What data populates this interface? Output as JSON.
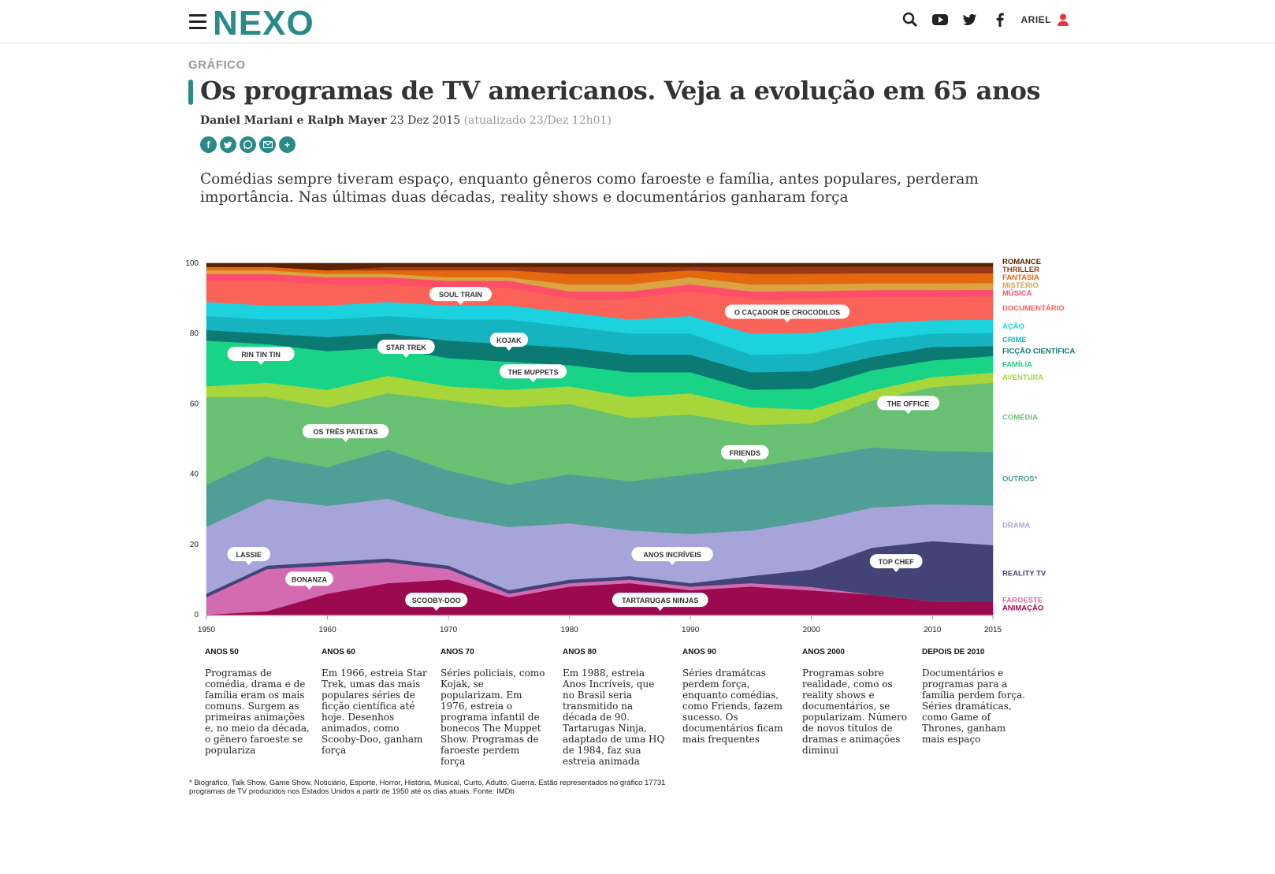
{
  "header": {
    "logo_text": "NEXO",
    "user_label": "ARIEL",
    "icons": [
      "menu-icon",
      "search-icon",
      "youtube-icon",
      "twitter-icon",
      "facebook-icon",
      "user-icon"
    ]
  },
  "article": {
    "kicker": "GRÁFICO",
    "title": "Os programas de TV americanos. Veja a evolução em 65 anos",
    "authors": "Daniel Mariani e Ralph Mayer",
    "date": "23 Dez 2015",
    "updated": "(atualizado 23/Dez 12h01)",
    "share_icons": [
      "facebook-icon",
      "twitter-icon",
      "whatsapp-icon",
      "email-icon",
      "plus-icon"
    ],
    "lead": "Comédias sempre tiveram espaço, enquanto gêneros como faroeste e família, antes populares, perderam importância. Nas últimas duas décadas, reality shows e documentários ganharam força"
  },
  "chart_data": {
    "type": "area",
    "stacked": "percent",
    "ylim": [
      0,
      100
    ],
    "yticks": [
      "0",
      "20",
      "40",
      "60",
      "80",
      "100"
    ],
    "xlim": [
      1950,
      2015
    ],
    "xticks": [
      "1950",
      "1960",
      "1970",
      "1980",
      "1990",
      "2000",
      "2010",
      "2015"
    ],
    "x": [
      1950,
      1955,
      1960,
      1965,
      1970,
      1975,
      1980,
      1985,
      1990,
      1995,
      2000,
      2005,
      2010,
      2015
    ],
    "series": [
      {
        "name": "ANIMAÇÃO",
        "color": "#9b0a4f",
        "values": [
          0,
          1,
          6,
          9,
          10,
          5,
          8,
          9,
          7,
          8,
          7,
          6,
          4,
          4
        ]
      },
      {
        "name": "FAROESTE",
        "color": "#d36ab2",
        "values": [
          5,
          12,
          8,
          6,
          3,
          1,
          1,
          1,
          1,
          1,
          1,
          0,
          0,
          0
        ]
      },
      {
        "name": "REALITY TV",
        "color": "#434378",
        "values": [
          1,
          1,
          1,
          1,
          1,
          1,
          1,
          1,
          1,
          2,
          5,
          14,
          18,
          17
        ]
      },
      {
        "name": "DRAMA",
        "color": "#a6a4d9",
        "values": [
          19,
          19,
          16,
          17,
          14,
          18,
          16,
          13,
          14,
          13,
          14,
          12,
          11,
          12
        ]
      },
      {
        "name": "OUTROS*",
        "color": "#4f9f96",
        "values": [
          12,
          12,
          11,
          14,
          13,
          12,
          14,
          14,
          17,
          18,
          18,
          18,
          16,
          16
        ]
      },
      {
        "name": "COMÉDIA",
        "color": "#68c073",
        "values": [
          25,
          17,
          17,
          16,
          20,
          22,
          20,
          18,
          17,
          12,
          10,
          14,
          19,
          21
        ]
      },
      {
        "name": "AVENTURA",
        "color": "#a7d63a",
        "values": [
          3,
          4,
          5,
          5,
          4,
          5,
          5,
          6,
          6,
          5,
          4,
          3,
          3,
          3
        ]
      },
      {
        "name": "FAMÍLIA",
        "color": "#19d486",
        "values": [
          13,
          11,
          11,
          8,
          8,
          8,
          6,
          7,
          6,
          5,
          6,
          6,
          5,
          5
        ]
      },
      {
        "name": "FICÇÃO CIENTÍFICA",
        "color": "#0a7a72",
        "values": [
          3,
          3,
          4,
          4,
          5,
          5,
          5,
          5,
          5,
          5,
          5,
          4,
          4,
          3
        ]
      },
      {
        "name": "CRIME",
        "color": "#15b4c0",
        "values": [
          4,
          4,
          5,
          5,
          6,
          7,
          6,
          6,
          6,
          5,
          5,
          5,
          4,
          4
        ]
      },
      {
        "name": "AÇÃO",
        "color": "#1bd2de",
        "values": [
          4,
          4,
          4,
          4,
          4,
          4,
          4,
          4,
          5,
          6,
          6,
          5,
          4,
          4
        ]
      },
      {
        "name": "DOCUMENTÁRIO",
        "color": "#fb6258",
        "values": [
          6,
          7,
          6,
          5,
          5,
          5,
          4,
          6,
          7,
          10,
          10,
          8,
          7,
          7
        ]
      },
      {
        "name": "MÚSICA",
        "color": "#ff4d6a",
        "values": [
          2,
          2,
          2,
          2,
          2,
          2,
          2,
          2,
          2,
          2,
          2,
          2,
          2,
          2
        ]
      },
      {
        "name": "MISTÉRIO",
        "color": "#d9a441",
        "values": [
          1,
          1,
          1,
          1,
          1,
          1,
          2,
          2,
          2,
          2,
          2,
          2,
          2,
          2
        ]
      },
      {
        "name": "FANTASIA",
        "color": "#e4680d",
        "values": [
          1,
          1,
          1,
          1,
          2,
          2,
          3,
          3,
          2,
          3,
          3,
          3,
          3,
          3
        ]
      },
      {
        "name": "THRILLER",
        "color": "#9a3916",
        "values": [
          0,
          0,
          0,
          1,
          1,
          1,
          2,
          2,
          1,
          2,
          2,
          2,
          2,
          2
        ]
      },
      {
        "name": "ROMANCE",
        "color": "#5a2300",
        "values": [
          1,
          1,
          2,
          1,
          1,
          1,
          1,
          1,
          1,
          1,
          1,
          1,
          1,
          1
        ]
      }
    ],
    "annotations": [
      {
        "label": "SOUL TRAIN",
        "x": 1971,
        "y": 91
      },
      {
        "label": "O CAÇADOR DE CROCODILOS",
        "x": 1998,
        "y": 86
      },
      {
        "label": "RIN TIN TIN",
        "x": 1954.5,
        "y": 74
      },
      {
        "label": "STAR TREK",
        "x": 1966.5,
        "y": 76
      },
      {
        "label": "KOJAK",
        "x": 1975,
        "y": 78
      },
      {
        "label": "THE MUPPETS",
        "x": 1977,
        "y": 69
      },
      {
        "label": "THE OFFICE",
        "x": 2008,
        "y": 60
      },
      {
        "label": "OS TRÊS PATETAS",
        "x": 1961.5,
        "y": 52
      },
      {
        "label": "FRIENDS",
        "x": 1994.5,
        "y": 46
      },
      {
        "label": "LASSIE",
        "x": 1953.5,
        "y": 17
      },
      {
        "label": "ANOS INCRÍVEIS",
        "x": 1988.5,
        "y": 17
      },
      {
        "label": "TOP CHEF",
        "x": 2007,
        "y": 15
      },
      {
        "label": "BONANZA",
        "x": 1958.5,
        "y": 10
      },
      {
        "label": "SCOOBY-DOO",
        "x": 1969,
        "y": 4
      },
      {
        "label": "TARTARUGAS NINJAS",
        "x": 1987.5,
        "y": 4
      }
    ]
  },
  "decades": [
    {
      "title": "ANOS 50",
      "text": "Programas de comédia, drama e de família eram os mais comuns. Surgem as primeiras animações e, no meio da década, o gênero faroeste se populariza"
    },
    {
      "title": "ANOS 60",
      "text": "Em 1966, estreia Star Trek, umas das mais populares séries de ficção científica até hoje. Desenhos animados, como Scooby-Doo, ganham força"
    },
    {
      "title": "ANOS 70",
      "text": "Séries policiais, como Kojak, se popularizam. Em 1976, estreia o programa infantil de bonecos The Muppet Show. Programas de faroeste perdem força"
    },
    {
      "title": "ANOS 80",
      "text": "Em 1988, estreia Anos Incríveis, que no Brasil seria transmitido na década de 90. Tartarugas Ninja, adaptado de uma HQ de 1984, faz sua estreia animada"
    },
    {
      "title": "ANOS 90",
      "text": "Séries dramátcas perdem força, enquanto comédias, como Friends, fazem sucesso. Os documentários ficam mais frequentes"
    },
    {
      "title": "ANOS 2000",
      "text": "Programas sobre realidade, como os reality shows e documentários, se popularizam. Número de novos títulos de dramas e animações diminui"
    },
    {
      "title": "DEPOIS DE 2010",
      "text": "Documentários e programas para a família perdem força. Séries dramáticas, como Game of Thrones, ganham mais espaço"
    }
  ],
  "footnote": "* Biográfico, Talk Show, Game Show, Noticiário, Esporte, Horror, História, Musical, Curto, Adulto, Guerra. Estão representados no gráfico 17731 programas de TV produzidos nos Estados Unidos a partir de 1950 até os dias atuais. Fonte: IMDb",
  "colors": {
    "accent": "#2a8a8a",
    "text": "#333333",
    "muted": "#999999"
  }
}
